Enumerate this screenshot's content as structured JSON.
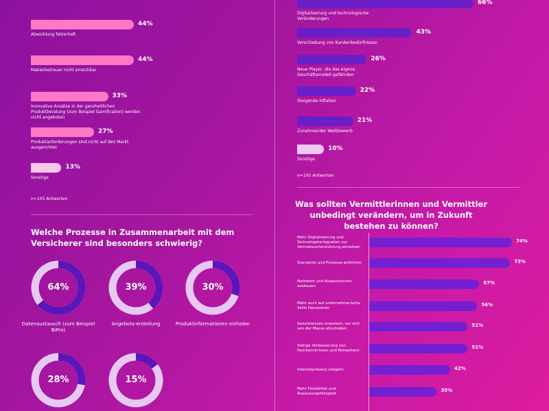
{
  "chart_data": [
    {
      "type": "hbar",
      "categories": [
        "Abwicklung fehlerhaft",
        "Maklerbetreuer nicht erreichbar",
        "Innovative Ansätze in der ganzheitlichen Produktberatung (zum Beispiel Gamification) werden nicht angeboten",
        "Produktanforderungen sind nicht auf den Markt ausgerichtet",
        "Sonstige"
      ],
      "values": [
        44,
        44,
        33,
        27,
        13
      ],
      "value_labels": [
        "44%",
        "44%",
        "33%",
        "27%",
        "13%"
      ],
      "colors": [
        "#ff78c6",
        "#ff78c6",
        "#ff78c6",
        "#ff78c6",
        "#f8c8ea"
      ],
      "note": "n=105 Antworten"
    },
    {
      "type": "hbar",
      "categories": [
        "Digitalisierung und technologische Veränderungen",
        "Verschiebung von Kundenbedürfnissen",
        "Neue Player, die das eigene Geschäftsmodell gefährden",
        "Steigende Inflation",
        "Zunehmender Wettbewerb",
        "Sonstige"
      ],
      "values": [
        66,
        43,
        26,
        22,
        21,
        10
      ],
      "value_labels": [
        "66%",
        "43%",
        "26%",
        "22%",
        "21%",
        "10%"
      ],
      "colors": [
        "#6a1ec8",
        "#6a1ec8",
        "#6a1ec8",
        "#6a1ec8",
        "#6a1ec8",
        "#ecc8f2"
      ],
      "note": "n=105 Antworten"
    },
    {
      "type": "donut",
      "title": "Welche Prozesse in Zusammenarbeit mit dem Versicherer sind besonders schwierig?",
      "categories": [
        "Datenaustausch (zum Beispiel BiPro)",
        "Angebots-erstellung",
        "Produktinformationen einholen",
        null,
        null
      ],
      "values": [
        64,
        39,
        30,
        28,
        15
      ],
      "value_labels": [
        "64%",
        "39%",
        "30%",
        "28%",
        "15%"
      ],
      "color": "#5a16b8",
      "track_color": "#e6c9f3"
    },
    {
      "type": "hbar_axis",
      "title": "Was sollten Vermittlerinnen und Vermittler unbedingt verändern, um in Zukunft bestehen zu können?",
      "categories": [
        "Mehr Digitalisierung und Technologieintegration zur Vertriebsunterstützung einsetzen",
        "Standards und Prozesse einführen",
        "Netzwerk und Kooperationen ausbauen",
        "Mehr auch auf unternehmerische Skills fokussieren",
        "Spezialwissen erwerben, um sich von der Masse abzuheben",
        "Stetige Verbesserung von Fachkenntnissen und Kompetenz",
        "Internetpräsenz steigern",
        "Mehr Flexibilität und Anpassungsfähigkeit"
      ],
      "values": [
        74,
        73,
        57,
        56,
        51,
        51,
        42,
        35
      ],
      "value_labels": [
        "74%",
        "73%",
        "57%",
        "56%",
        "51%",
        "51%",
        "42%",
        "35%"
      ],
      "color": "#7420d2"
    }
  ]
}
